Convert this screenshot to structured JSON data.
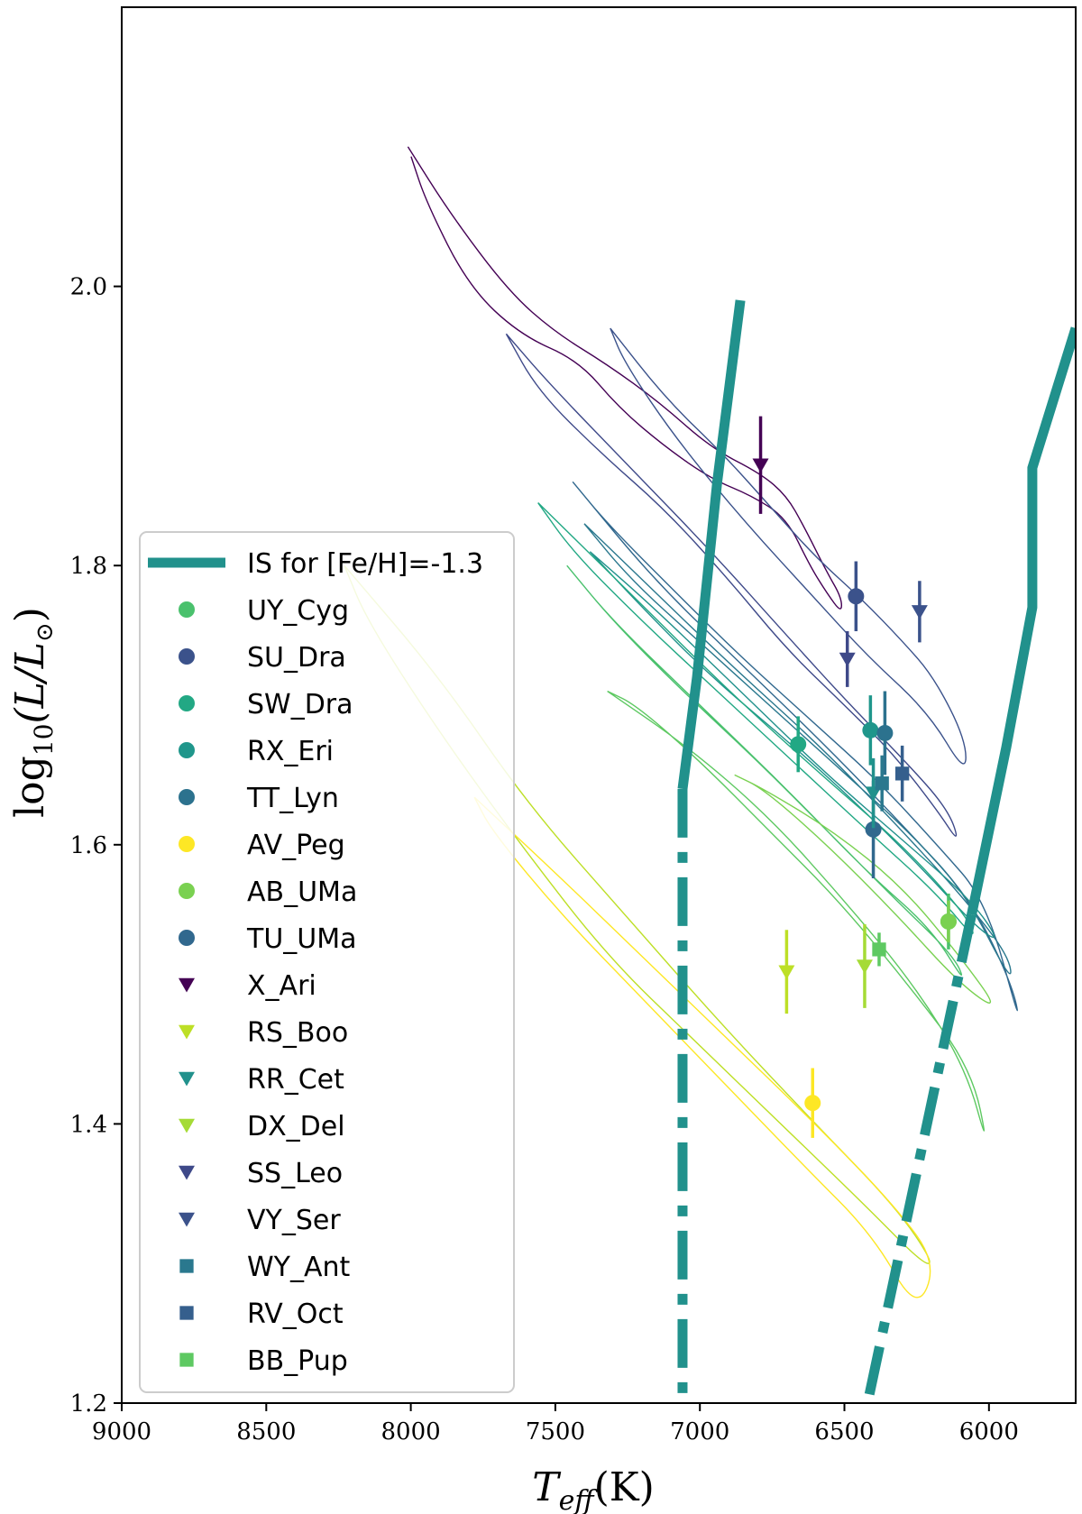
{
  "chart_data": {
    "type": "scatter",
    "title": "",
    "xlabel_main": "T",
    "xlabel_sub": "eff",
    "xlabel_unit": "(K)",
    "ylabel_main": "log",
    "ylabel_sub": "10",
    "ylabel_rest": "(L/L",
    "ylabel_sun": "⊙",
    "ylabel_close": ")",
    "xlim": [
      9000,
      5700
    ],
    "ylim": [
      1.2,
      2.2
    ],
    "x_inverted": true,
    "grid": false,
    "legend_position": "left",
    "xticks": [
      9000,
      8500,
      8000,
      7500,
      7000,
      6500,
      6000
    ],
    "xtick_labels": [
      "9000",
      "8500",
      "8000",
      "7500",
      "7000",
      "6500",
      "6000"
    ],
    "yticks": [
      1.2,
      1.4,
      1.6,
      1.8,
      2.0
    ],
    "ytick_labels": [
      "1.2",
      "1.4",
      "1.6",
      "1.8",
      "2.0"
    ],
    "instability_strip": {
      "name": "IS for [Fe/H]=-1.3",
      "color": "#21918c",
      "blue_edge_solid": [
        [
          6860,
          1.99
        ],
        [
          6940,
          1.86
        ],
        [
          7010,
          1.72
        ],
        [
          7060,
          1.64
        ]
      ],
      "blue_edge_dashed": [
        [
          7060,
          1.64
        ],
        [
          7060,
          1.2
        ]
      ],
      "red_edge_solid": [
        [
          5700,
          1.97
        ],
        [
          5850,
          1.87
        ],
        [
          5850,
          1.77
        ],
        [
          5940,
          1.67
        ],
        [
          6060,
          1.55
        ]
      ],
      "red_edge_dashed": [
        [
          6060,
          1.55
        ],
        [
          6420,
          1.2
        ]
      ]
    },
    "series": [
      {
        "name": "UY_Cyg",
        "marker": "circle",
        "color": "#4ac16d",
        "x": 6140,
        "y": 1.545,
        "yerr": 0.02
      },
      {
        "name": "SU_Dra",
        "marker": "circle",
        "color": "#3b528b",
        "x": 6460,
        "y": 1.778,
        "yerr": 0.025
      },
      {
        "name": "SW_Dra",
        "marker": "circle",
        "color": "#22a884",
        "x": 6660,
        "y": 1.672,
        "yerr": 0.02
      },
      {
        "name": "RX_Eri",
        "marker": "circle",
        "color": "#1f968b",
        "x": 6410,
        "y": 1.682,
        "yerr": 0.025
      },
      {
        "name": "TT_Lyn",
        "marker": "circle",
        "color": "#2c728e",
        "x": 6360,
        "y": 1.68,
        "yerr": 0.03
      },
      {
        "name": "AV_Peg",
        "marker": "circle",
        "color": "#fde725",
        "x": 6610,
        "y": 1.415,
        "yerr": 0.025
      },
      {
        "name": "AB_UMa",
        "marker": "circle",
        "color": "#7ad151",
        "x": 6140,
        "y": 1.545,
        "yerr": 0.015
      },
      {
        "name": "TU_UMa",
        "marker": "circle",
        "color": "#31688e",
        "x": 6400,
        "y": 1.611,
        "yerr": 0.035
      },
      {
        "name": "X_Ari",
        "marker": "triangle",
        "color": "#440154",
        "x": 6790,
        "y": 1.872,
        "yerr": 0.035
      },
      {
        "name": "RS_Boo",
        "marker": "triangle",
        "color": "#bddf26",
        "x": 6700,
        "y": 1.509,
        "yerr": 0.03
      },
      {
        "name": "RR_Cet",
        "marker": "triangle",
        "color": "#21918c",
        "x": 6400,
        "y": 1.637,
        "yerr": 0.025
      },
      {
        "name": "DX_Del",
        "marker": "triangle",
        "color": "#a5db36",
        "x": 6430,
        "y": 1.513,
        "yerr": 0.03
      },
      {
        "name": "SS_Leo",
        "marker": "triangle",
        "color": "#3e4989",
        "x": 6490,
        "y": 1.733,
        "yerr": 0.02
      },
      {
        "name": "VY_Ser",
        "marker": "triangle",
        "color": "#3b528b",
        "x": 6240,
        "y": 1.767,
        "yerr": 0.022
      },
      {
        "name": "WY_Ant",
        "marker": "square",
        "color": "#2a788e",
        "x": 6370,
        "y": 1.644,
        "yerr": 0.02
      },
      {
        "name": "RV_Oct",
        "marker": "square",
        "color": "#355f8d",
        "x": 6300,
        "y": 1.651,
        "yerr": 0.02
      },
      {
        "name": "BB_Pup",
        "marker": "square",
        "color": "#5ec962",
        "x": 6380,
        "y": 1.525,
        "yerr": 0.012
      }
    ],
    "loops": [
      {
        "color": "#440154",
        "points": [
          [
            7999,
            2.093
          ],
          [
            7946,
            2.06
          ],
          [
            7800,
            2.0
          ],
          [
            7620,
            1.965
          ],
          [
            7420,
            1.947
          ],
          [
            7280,
            1.913
          ],
          [
            7120,
            1.885
          ],
          [
            6960,
            1.862
          ],
          [
            6820,
            1.85
          ],
          [
            6700,
            1.834
          ],
          [
            6620,
            1.8
          ],
          [
            6560,
            1.78
          ],
          [
            6510,
            1.766
          ],
          [
            6510,
            1.777
          ],
          [
            6560,
            1.795
          ],
          [
            6640,
            1.828
          ],
          [
            6700,
            1.85
          ],
          [
            6790,
            1.866
          ],
          [
            6960,
            1.884
          ],
          [
            7140,
            1.917
          ],
          [
            7320,
            1.944
          ],
          [
            7500,
            1.967
          ],
          [
            7660,
            1.996
          ],
          [
            7860,
            2.051
          ],
          [
            8010,
            2.1
          ]
        ]
      },
      {
        "color": "#3b528b",
        "points": [
          [
            7310,
            1.97
          ],
          [
            7260,
            1.945
          ],
          [
            7080,
            1.89
          ],
          [
            6840,
            1.83
          ],
          [
            6600,
            1.776
          ],
          [
            6420,
            1.735
          ],
          [
            6210,
            1.695
          ],
          [
            6080,
            1.65
          ],
          [
            6080,
            1.675
          ],
          [
            6190,
            1.72
          ],
          [
            6300,
            1.746
          ],
          [
            6440,
            1.776
          ],
          [
            6600,
            1.806
          ],
          [
            6760,
            1.843
          ],
          [
            6920,
            1.88
          ],
          [
            7120,
            1.92
          ],
          [
            7310,
            1.97
          ]
        ]
      },
      {
        "color": "#3e4989",
        "points": [
          [
            7670,
            1.966
          ],
          [
            7560,
            1.925
          ],
          [
            7340,
            1.88
          ],
          [
            7120,
            1.84
          ],
          [
            6900,
            1.79
          ],
          [
            6700,
            1.74
          ],
          [
            6500,
            1.7
          ],
          [
            6330,
            1.665
          ],
          [
            6180,
            1.625
          ],
          [
            6100,
            1.6
          ],
          [
            6140,
            1.625
          ],
          [
            6290,
            1.66
          ],
          [
            6480,
            1.7
          ],
          [
            6700,
            1.75
          ],
          [
            6960,
            1.81
          ],
          [
            7240,
            1.87
          ],
          [
            7520,
            1.93
          ],
          [
            7670,
            1.966
          ]
        ]
      },
      {
        "color": "#31688e",
        "points": [
          [
            7440,
            1.86
          ],
          [
            7320,
            1.83
          ],
          [
            7080,
            1.78
          ],
          [
            6860,
            1.735
          ],
          [
            6620,
            1.69
          ],
          [
            6380,
            1.645
          ],
          [
            6180,
            1.6
          ],
          [
            6010,
            1.56
          ],
          [
            5890,
            1.47
          ],
          [
            5920,
            1.5
          ],
          [
            6060,
            1.56
          ],
          [
            6280,
            1.61
          ],
          [
            6560,
            1.67
          ],
          [
            6860,
            1.73
          ],
          [
            7160,
            1.79
          ],
          [
            7440,
            1.86
          ]
        ]
      },
      {
        "color": "#2a788e",
        "points": [
          [
            7400,
            1.83
          ],
          [
            7240,
            1.79
          ],
          [
            7000,
            1.745
          ],
          [
            6760,
            1.7
          ],
          [
            6520,
            1.655
          ],
          [
            6280,
            1.61
          ],
          [
            6080,
            1.565
          ],
          [
            5920,
            1.5
          ],
          [
            5930,
            1.52
          ],
          [
            6080,
            1.56
          ],
          [
            6300,
            1.61
          ],
          [
            6580,
            1.67
          ],
          [
            6900,
            1.73
          ],
          [
            7200,
            1.79
          ],
          [
            7400,
            1.83
          ]
        ]
      },
      {
        "color": "#21918c",
        "points": [
          [
            7380,
            1.81
          ],
          [
            7200,
            1.77
          ],
          [
            6960,
            1.72
          ],
          [
            6700,
            1.675
          ],
          [
            6460,
            1.63
          ],
          [
            6240,
            1.585
          ],
          [
            6040,
            1.54
          ],
          [
            5960,
            1.53
          ],
          [
            6060,
            1.56
          ],
          [
            6280,
            1.6
          ],
          [
            6560,
            1.65
          ],
          [
            6860,
            1.71
          ],
          [
            7160,
            1.77
          ],
          [
            7380,
            1.81
          ]
        ]
      },
      {
        "color": "#22a884",
        "points": [
          [
            7560,
            1.845
          ],
          [
            7440,
            1.81
          ],
          [
            7200,
            1.76
          ],
          [
            6940,
            1.71
          ],
          [
            6680,
            1.66
          ],
          [
            6420,
            1.61
          ],
          [
            6180,
            1.565
          ],
          [
            6040,
            1.53
          ],
          [
            6080,
            1.55
          ],
          [
            6300,
            1.6
          ],
          [
            6580,
            1.65
          ],
          [
            6900,
            1.71
          ],
          [
            7240,
            1.78
          ],
          [
            7560,
            1.845
          ]
        ]
      },
      {
        "color": "#4ac16d",
        "points": [
          [
            7460,
            1.8
          ],
          [
            7300,
            1.76
          ],
          [
            7060,
            1.71
          ],
          [
            6800,
            1.66
          ],
          [
            6560,
            1.61
          ],
          [
            6320,
            1.56
          ],
          [
            6120,
            1.52
          ],
          [
            6080,
            1.5
          ],
          [
            6200,
            1.54
          ],
          [
            6420,
            1.58
          ],
          [
            6700,
            1.64
          ],
          [
            7000,
            1.7
          ],
          [
            7300,
            1.76
          ],
          [
            7460,
            1.8
          ]
        ]
      },
      {
        "color": "#5ec962",
        "points": [
          [
            7320,
            1.71
          ],
          [
            7220,
            1.7
          ],
          [
            7000,
            1.66
          ],
          [
            6760,
            1.61
          ],
          [
            6520,
            1.56
          ],
          [
            6280,
            1.5
          ],
          [
            6060,
            1.44
          ],
          [
            6000,
            1.38
          ],
          [
            6080,
            1.44
          ],
          [
            6260,
            1.5
          ],
          [
            6500,
            1.56
          ],
          [
            6760,
            1.62
          ],
          [
            7040,
            1.67
          ],
          [
            7320,
            1.71
          ]
        ]
      },
      {
        "color": "#7ad151",
        "points": [
          [
            6880,
            1.65
          ],
          [
            6780,
            1.64
          ],
          [
            6560,
            1.6
          ],
          [
            6320,
            1.55
          ],
          [
            6100,
            1.5
          ],
          [
            5960,
            1.48
          ],
          [
            6100,
            1.52
          ],
          [
            6300,
            1.57
          ],
          [
            6540,
            1.61
          ],
          [
            6780,
            1.64
          ],
          [
            6880,
            1.65
          ]
        ]
      },
      {
        "color": "#bddf26",
        "points": [
          [
            8230,
            1.8
          ],
          [
            8150,
            1.76
          ],
          [
            7900,
            1.68
          ],
          [
            7620,
            1.6
          ],
          [
            7320,
            1.52
          ],
          [
            7020,
            1.46
          ],
          [
            6720,
            1.4
          ],
          [
            6420,
            1.34
          ],
          [
            6230,
            1.3
          ],
          [
            6190,
            1.3
          ],
          [
            6320,
            1.34
          ],
          [
            6600,
            1.4
          ],
          [
            6920,
            1.47
          ],
          [
            7260,
            1.55
          ],
          [
            7600,
            1.63
          ],
          [
            7900,
            1.72
          ],
          [
            8230,
            1.8
          ]
        ]
      },
      {
        "color": "#fde725",
        "points": [
          [
            7780,
            1.634
          ],
          [
            7720,
            1.61
          ],
          [
            7480,
            1.55
          ],
          [
            7200,
            1.49
          ],
          [
            6920,
            1.43
          ],
          [
            6640,
            1.37
          ],
          [
            6400,
            1.32
          ],
          [
            6250,
            1.265
          ],
          [
            6180,
            1.3
          ],
          [
            6320,
            1.34
          ],
          [
            6600,
            1.4
          ],
          [
            6900,
            1.46
          ],
          [
            7200,
            1.52
          ],
          [
            7500,
            1.58
          ],
          [
            7780,
            1.634
          ]
        ]
      }
    ]
  }
}
